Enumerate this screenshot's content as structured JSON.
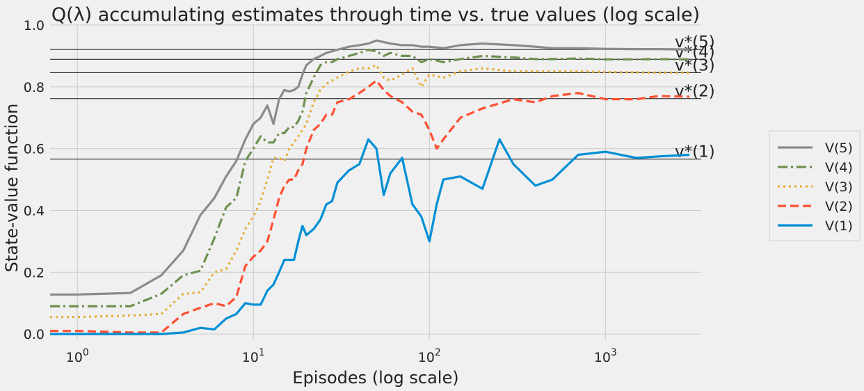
{
  "chart_data": {
    "type": "line",
    "title": "Q(λ) accumulating estimates through time vs. true values (log scale)",
    "xlabel": "Episodes (log scale)",
    "ylabel": "State-value function",
    "xscale": "log",
    "xlim": [
      0.7,
      3500
    ],
    "ylim": [
      -0.02,
      1.0
    ],
    "grid": true,
    "legend_position": "right",
    "x_ticks": [
      {
        "value": 1,
        "base": "10",
        "exp": "0"
      },
      {
        "value": 10,
        "base": "10",
        "exp": "1"
      },
      {
        "value": 100,
        "base": "10",
        "exp": "2"
      },
      {
        "value": 1000,
        "base": "10",
        "exp": "3"
      }
    ],
    "y_ticks": [
      {
        "value": 0.0,
        "label": "0.0"
      },
      {
        "value": 0.2,
        "label": "0.2"
      },
      {
        "value": 0.4,
        "label": "0.4"
      },
      {
        "value": 0.6,
        "label": "0.6"
      },
      {
        "value": 0.8,
        "label": "0.8"
      },
      {
        "value": 1.0,
        "label": "1.0"
      }
    ],
    "reference_lines": [
      {
        "label": "v*(5)",
        "value": 0.921
      },
      {
        "label": "v*(4)",
        "value": 0.889
      },
      {
        "label": "v*(3)",
        "value": 0.846
      },
      {
        "label": "v*(2)",
        "value": 0.762
      },
      {
        "label": "v*(1)",
        "value": 0.566
      }
    ],
    "series": [
      {
        "name": "V(5)",
        "color": "#8b8b8b",
        "dash": "solid",
        "x": [
          0.7,
          1,
          2,
          3,
          4,
          5,
          6,
          7,
          8,
          9,
          10,
          11,
          12,
          13,
          14,
          15,
          16,
          17,
          18,
          19,
          20,
          22,
          24,
          26,
          28,
          30,
          35,
          40,
          45,
          50,
          55,
          60,
          70,
          80,
          90,
          100,
          120,
          150,
          200,
          300,
          400,
          500,
          700,
          1000,
          1500,
          2000,
          3000
        ],
        "y": [
          0.128,
          0.128,
          0.133,
          0.19,
          0.27,
          0.385,
          0.44,
          0.51,
          0.56,
          0.63,
          0.68,
          0.7,
          0.74,
          0.68,
          0.76,
          0.79,
          0.785,
          0.79,
          0.8,
          0.84,
          0.87,
          0.89,
          0.9,
          0.91,
          0.915,
          0.92,
          0.93,
          0.935,
          0.94,
          0.95,
          0.945,
          0.94,
          0.935,
          0.935,
          0.93,
          0.93,
          0.925,
          0.935,
          0.94,
          0.935,
          0.93,
          0.925,
          0.925,
          0.923,
          0.922,
          0.922,
          0.921
        ]
      },
      {
        "name": "V(4)",
        "color": "#6d904f",
        "dash": "dashdot",
        "x": [
          0.7,
          1,
          2,
          3,
          4,
          5,
          6,
          7,
          8,
          9,
          10,
          11,
          12,
          13,
          14,
          15,
          16,
          17,
          18,
          19,
          20,
          22,
          24,
          26,
          28,
          30,
          35,
          40,
          45,
          50,
          55,
          60,
          70,
          80,
          90,
          100,
          120,
          150,
          200,
          300,
          400,
          500,
          700,
          1000,
          1500,
          2000,
          3000
        ],
        "y": [
          0.09,
          0.09,
          0.09,
          0.13,
          0.19,
          0.205,
          0.31,
          0.41,
          0.44,
          0.56,
          0.6,
          0.64,
          0.62,
          0.62,
          0.65,
          0.65,
          0.67,
          0.67,
          0.69,
          0.72,
          0.78,
          0.83,
          0.87,
          0.88,
          0.88,
          0.89,
          0.9,
          0.91,
          0.92,
          0.915,
          0.9,
          0.91,
          0.9,
          0.9,
          0.88,
          0.89,
          0.88,
          0.89,
          0.9,
          0.895,
          0.89,
          0.89,
          0.892,
          0.889,
          0.889,
          0.89,
          0.889
        ]
      },
      {
        "name": "V(3)",
        "color": "#e5ae38",
        "dash": "dotted",
        "x": [
          0.7,
          1,
          2,
          3,
          4,
          5,
          6,
          7,
          8,
          9,
          10,
          11,
          12,
          13,
          14,
          15,
          16,
          17,
          18,
          19,
          20,
          22,
          24,
          26,
          28,
          30,
          35,
          40,
          45,
          50,
          55,
          60,
          70,
          80,
          90,
          100,
          120,
          150,
          200,
          300,
          400,
          500,
          700,
          1000,
          1500,
          2000,
          3000
        ],
        "y": [
          0.055,
          0.055,
          0.06,
          0.065,
          0.13,
          0.135,
          0.2,
          0.21,
          0.27,
          0.34,
          0.38,
          0.43,
          0.5,
          0.57,
          0.57,
          0.56,
          0.6,
          0.62,
          0.64,
          0.66,
          0.68,
          0.75,
          0.79,
          0.81,
          0.82,
          0.83,
          0.85,
          0.86,
          0.86,
          0.87,
          0.83,
          0.82,
          0.84,
          0.86,
          0.8,
          0.84,
          0.83,
          0.85,
          0.86,
          0.85,
          0.85,
          0.85,
          0.85,
          0.848,
          0.847,
          0.846,
          0.846
        ]
      },
      {
        "name": "V(2)",
        "color": "#fc4f30",
        "dash": "dashed",
        "x": [
          0.7,
          1,
          2,
          3,
          4,
          5,
          6,
          7,
          8,
          9,
          10,
          11,
          12,
          13,
          14,
          15,
          16,
          17,
          18,
          19,
          20,
          22,
          24,
          26,
          28,
          30,
          35,
          40,
          45,
          50,
          55,
          60,
          70,
          80,
          90,
          100,
          110,
          120,
          150,
          200,
          300,
          400,
          500,
          700,
          1000,
          1500,
          2000,
          3000
        ],
        "y": [
          0.01,
          0.01,
          0.005,
          0.005,
          0.065,
          0.085,
          0.1,
          0.09,
          0.12,
          0.22,
          0.25,
          0.27,
          0.3,
          0.37,
          0.44,
          0.48,
          0.5,
          0.5,
          0.53,
          0.55,
          0.6,
          0.66,
          0.68,
          0.71,
          0.71,
          0.75,
          0.76,
          0.78,
          0.8,
          0.82,
          0.79,
          0.77,
          0.75,
          0.72,
          0.71,
          0.66,
          0.6,
          0.63,
          0.7,
          0.73,
          0.76,
          0.75,
          0.77,
          0.78,
          0.76,
          0.76,
          0.77,
          0.768
        ]
      },
      {
        "name": "V(1)",
        "color": "#008fd5",
        "dash": "solid",
        "x": [
          0.7,
          1,
          2,
          3,
          4,
          5,
          6,
          7,
          8,
          9,
          10,
          11,
          12,
          13,
          14,
          15,
          16,
          17,
          18,
          19,
          20,
          22,
          24,
          26,
          28,
          30,
          35,
          40,
          45,
          50,
          55,
          60,
          70,
          80,
          90,
          100,
          110,
          120,
          150,
          200,
          250,
          300,
          400,
          500,
          700,
          1000,
          1500,
          2000,
          3000
        ],
        "y": [
          0.0,
          0.0,
          0.0,
          0.0,
          0.005,
          0.02,
          0.015,
          0.05,
          0.065,
          0.1,
          0.095,
          0.095,
          0.14,
          0.16,
          0.2,
          0.24,
          0.24,
          0.24,
          0.3,
          0.35,
          0.32,
          0.34,
          0.37,
          0.42,
          0.43,
          0.49,
          0.53,
          0.55,
          0.63,
          0.6,
          0.45,
          0.52,
          0.57,
          0.42,
          0.38,
          0.3,
          0.42,
          0.5,
          0.51,
          0.47,
          0.63,
          0.55,
          0.48,
          0.5,
          0.58,
          0.59,
          0.57,
          0.575,
          0.58
        ]
      }
    ]
  }
}
